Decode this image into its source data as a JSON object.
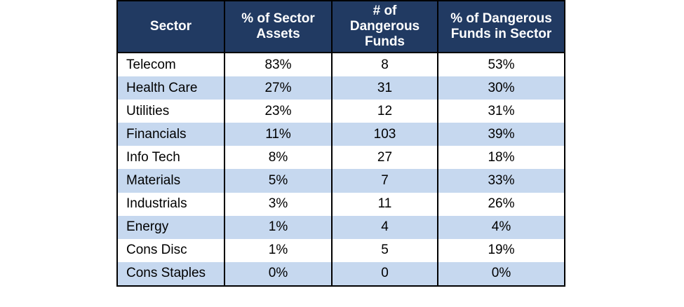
{
  "table": {
    "headers": [
      "Sector",
      "% of Sector\nAssets",
      "# of\nDangerous\nFunds",
      "% of Dangerous\nFunds in Sector"
    ],
    "rows": [
      [
        "Telecom",
        "83%",
        "8",
        "53%"
      ],
      [
        "Health Care",
        "27%",
        "31",
        "30%"
      ],
      [
        "Utilities",
        "23%",
        "12",
        "31%"
      ],
      [
        "Financials",
        "11%",
        "103",
        "39%"
      ],
      [
        "Info Tech",
        "8%",
        "27",
        "18%"
      ],
      [
        "Materials",
        "5%",
        "7",
        "33%"
      ],
      [
        "Industrials",
        "3%",
        "11",
        "26%"
      ],
      [
        "Energy",
        "1%",
        "4",
        "4%"
      ],
      [
        "Cons Disc",
        "1%",
        "5",
        "19%"
      ],
      [
        "Cons Staples",
        "0%",
        "0",
        "0%"
      ]
    ]
  },
  "colors": {
    "header_bg": "#213a62",
    "header_text": "#ffffff",
    "stripe_bg": "#c6d8ef",
    "border": "#000000"
  }
}
